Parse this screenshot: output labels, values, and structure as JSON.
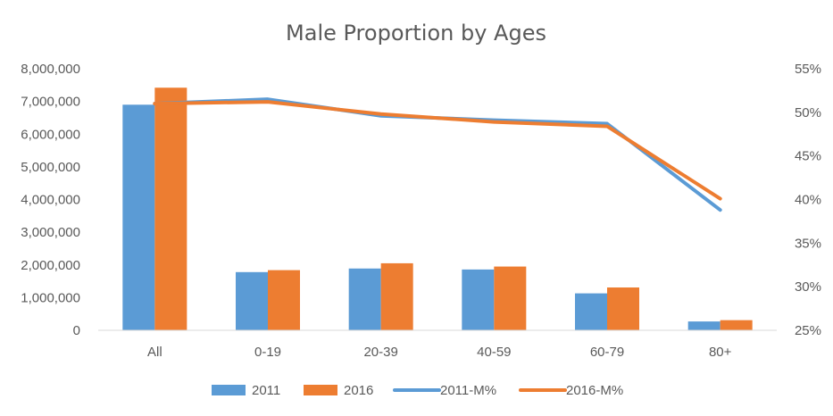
{
  "chart_data": {
    "type": "bar",
    "title": "Male Proportion by Ages",
    "categories": [
      "All",
      "0-19",
      "20-39",
      "40-59",
      "60-79",
      "80+"
    ],
    "y_left": {
      "min": 0,
      "max": 8000000,
      "ticks": [
        0,
        1000000,
        2000000,
        3000000,
        4000000,
        5000000,
        6000000,
        7000000,
        8000000
      ],
      "tick_labels": [
        "0",
        "1,000,000",
        "2,000,000",
        "3,000,000",
        "4,000,000",
        "5,000,000",
        "6,000,000",
        "7,000,000",
        "8,000,000"
      ]
    },
    "y_right": {
      "min": 25,
      "max": 55,
      "ticks": [
        25,
        30,
        35,
        40,
        45,
        50,
        55
      ],
      "tick_labels": [
        "25%",
        "30%",
        "35%",
        "40%",
        "45%",
        "50%",
        "55%"
      ]
    },
    "series": [
      {
        "name": "2011",
        "kind": "bar",
        "axis": "left",
        "color": "#5B9BD5",
        "values": [
          6900000,
          1780000,
          1890000,
          1860000,
          1130000,
          270000
        ]
      },
      {
        "name": "2016",
        "kind": "bar",
        "axis": "left",
        "color": "#ED7D31",
        "values": [
          7420000,
          1840000,
          2050000,
          1950000,
          1310000,
          310000
        ]
      },
      {
        "name": "2011-M%",
        "kind": "line",
        "axis": "right",
        "color": "#5B9BD5",
        "values": [
          51.0,
          51.5,
          49.6,
          49.1,
          48.7,
          38.8
        ]
      },
      {
        "name": "2016-M%",
        "kind": "line",
        "axis": "right",
        "color": "#ED7D31",
        "values": [
          51.0,
          51.2,
          49.8,
          48.9,
          48.4,
          40.1
        ]
      }
    ],
    "gridlines": false,
    "legend": "bottom"
  }
}
